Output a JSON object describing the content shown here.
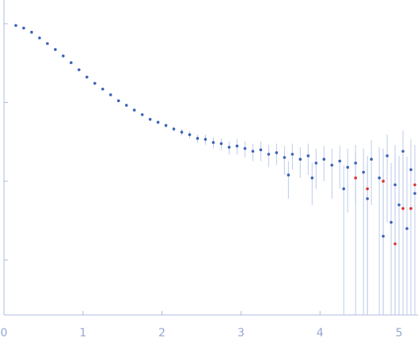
{
  "chart_data": {
    "type": "scatter",
    "log_y": true,
    "xlim": [
      0,
      5.24
    ],
    "xticks": [
      0,
      1,
      2,
      3,
      4,
      5
    ],
    "ylim": [
      0.0002,
      2
    ],
    "yticks": [
      0.001,
      0.01,
      0.1,
      1
    ],
    "error_color": "#bccbe8",
    "axis_color": "#aebbe0",
    "series": [
      {
        "color": "#3a63b5",
        "x": [
          0.15,
          0.25,
          0.35,
          0.45,
          0.55,
          0.65,
          0.75,
          0.85,
          0.95,
          1.05,
          1.15,
          1.25,
          1.35,
          1.45,
          1.55,
          1.65,
          1.75,
          1.85,
          1.95,
          2.05,
          2.15,
          2.25,
          2.35,
          2.45,
          2.55,
          2.65,
          2.75,
          2.85,
          2.95,
          3.05,
          3.15,
          3.25,
          3.35,
          3.45,
          3.55,
          3.65,
          3.75,
          3.85,
          3.95,
          4.05,
          4.15,
          4.25,
          4.35,
          4.45,
          4.55,
          4.65,
          4.75,
          4.85,
          4.95,
          5.05,
          5.15,
          3.6,
          3.9,
          4.3,
          4.6,
          4.8,
          4.9,
          5.0,
          5.1,
          5.2
        ],
        "values": [
          0.95,
          0.88,
          0.78,
          0.66,
          0.56,
          0.47,
          0.39,
          0.32,
          0.26,
          0.21,
          0.175,
          0.148,
          0.125,
          0.105,
          0.092,
          0.08,
          0.07,
          0.061,
          0.056,
          0.051,
          0.046,
          0.042,
          0.039,
          0.035,
          0.034,
          0.031,
          0.03,
          0.027,
          0.028,
          0.026,
          0.024,
          0.025,
          0.022,
          0.023,
          0.02,
          0.022,
          0.019,
          0.021,
          0.017,
          0.019,
          0.016,
          0.018,
          0.015,
          0.017,
          0.013,
          0.019,
          0.011,
          0.021,
          0.009,
          0.024,
          0.014,
          0.012,
          0.011,
          0.008,
          0.006,
          0.002,
          0.003,
          0.005,
          0.0025,
          0.007
        ],
        "errors": [
          0.01,
          0.01,
          0.008,
          0.006,
          0.005,
          0.004,
          0.003,
          0.003,
          0.003,
          0.002,
          0.002,
          0.002,
          0.002,
          0.002,
          0.002,
          0.002,
          0.002,
          0.002,
          0.003,
          0.003,
          0.003,
          0.004,
          0.004,
          0.004,
          0.005,
          0.005,
          0.005,
          0.005,
          0.006,
          0.006,
          0.006,
          0.007,
          0.007,
          0.007,
          0.008,
          0.008,
          0.008,
          0.009,
          0.009,
          0.009,
          0.01,
          0.01,
          0.011,
          0.012,
          0.013,
          0.014,
          0.016,
          0.018,
          0.02,
          0.02,
          0.02,
          0.006,
          0.006,
          0.008,
          0.01,
          0.012,
          0.014,
          0.016,
          0.018,
          0.02
        ]
      },
      {
        "color": "#d9342b",
        "x": [
          4.45,
          4.6,
          4.8,
          4.95,
          5.05,
          5.15,
          5.2
        ],
        "values": [
          0.011,
          0.008,
          0.01,
          0.0016,
          0.0045,
          0.0045,
          0.009
        ],
        "errors": [
          0.012,
          0.013,
          0.016,
          0.02,
          0.02,
          0.02,
          0.02
        ]
      }
    ]
  }
}
